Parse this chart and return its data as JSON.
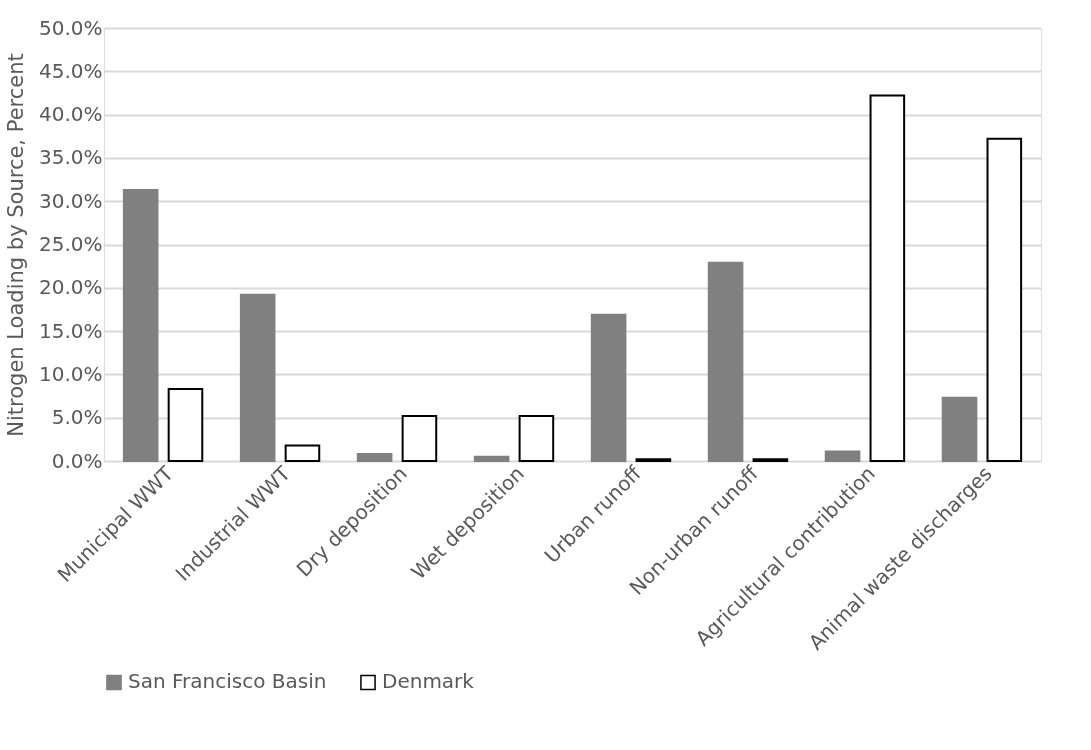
{
  "chart_data": {
    "type": "bar",
    "ylabel": "Nitrogen Loading by Source, Percent",
    "categories": [
      "Municipal WWT",
      "Industrial WWT",
      "Dry deposition",
      "Wet deposition",
      "Urban runoff",
      "Non-urban runoff",
      "Agricultural contribution",
      "Animal waste discharges"
    ],
    "series": [
      {
        "name": "San Francisco Basin",
        "color": "#808080",
        "values": [
          31.3,
          19.2,
          0.8,
          0.5,
          16.9,
          22.9,
          1.1,
          7.3
        ]
      },
      {
        "name": "Denmark",
        "color": "#ffffff",
        "values": [
          8.3,
          1.8,
          5.2,
          5.2,
          0.2,
          0.2,
          42.2,
          37.2
        ]
      }
    ],
    "ylim": [
      0,
      50
    ],
    "yticks": [
      {
        "value": 0,
        "label": "0.0%"
      },
      {
        "value": 5,
        "label": "5.0%"
      },
      {
        "value": 10,
        "label": "10.0%"
      },
      {
        "value": 15,
        "label": "15.0%"
      },
      {
        "value": 20,
        "label": "20.0%"
      },
      {
        "value": 25,
        "label": "25.0%"
      },
      {
        "value": 30,
        "label": "30.0%"
      },
      {
        "value": 35,
        "label": "35.0%"
      },
      {
        "value": 40,
        "label": "40.0%"
      },
      {
        "value": 45,
        "label": "45.0%"
      },
      {
        "value": 50,
        "label": "50.0%"
      }
    ],
    "grid": "y",
    "legend": "bottom"
  }
}
